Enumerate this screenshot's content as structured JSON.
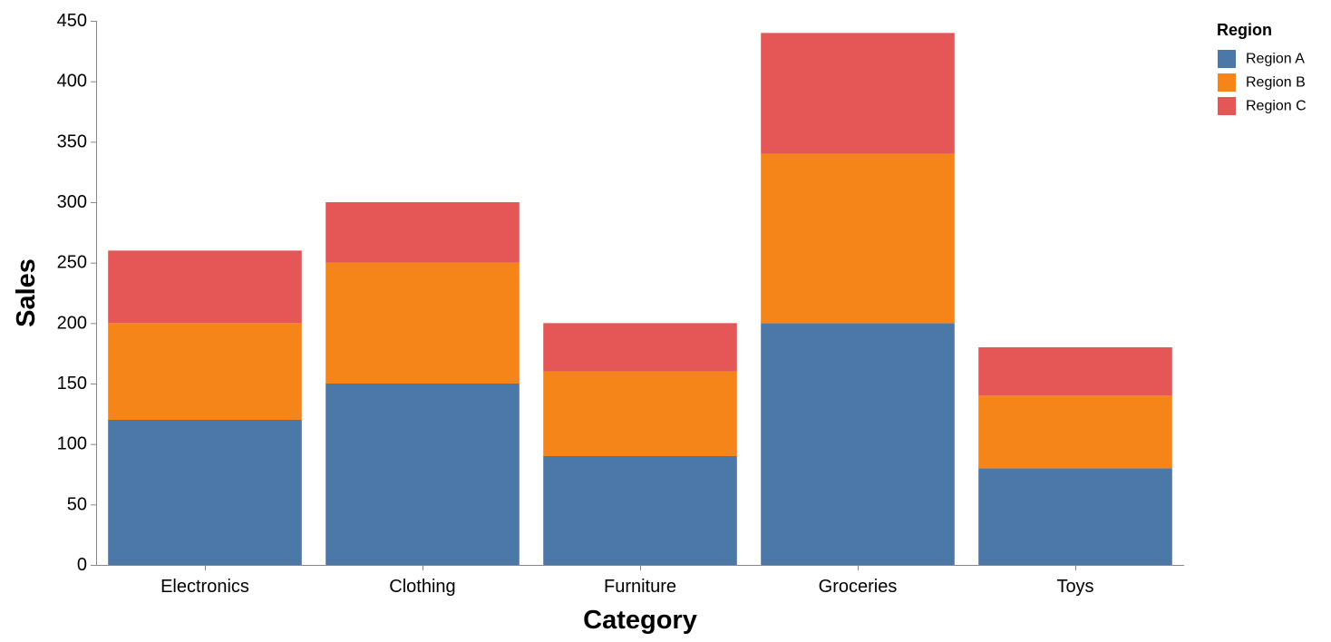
{
  "chart_data": {
    "type": "bar",
    "stacked": true,
    "title": "",
    "xlabel": "Category",
    "ylabel": "Sales",
    "categories": [
      "Electronics",
      "Clothing",
      "Furniture",
      "Groceries",
      "Toys"
    ],
    "series": [
      {
        "name": "Region A",
        "color": "#4c78a8",
        "values": [
          120,
          150,
          90,
          200,
          80
        ]
      },
      {
        "name": "Region B",
        "color": "#f58518",
        "values": [
          80,
          100,
          70,
          140,
          60
        ]
      },
      {
        "name": "Region C",
        "color": "#e45756",
        "values": [
          60,
          50,
          40,
          100,
          40
        ]
      }
    ],
    "ylim": [
      0,
      450
    ],
    "yticks": [
      0,
      50,
      100,
      150,
      200,
      250,
      300,
      350,
      400,
      450
    ],
    "grid": false,
    "legend": {
      "title": "Region",
      "placement": "top-right"
    }
  }
}
